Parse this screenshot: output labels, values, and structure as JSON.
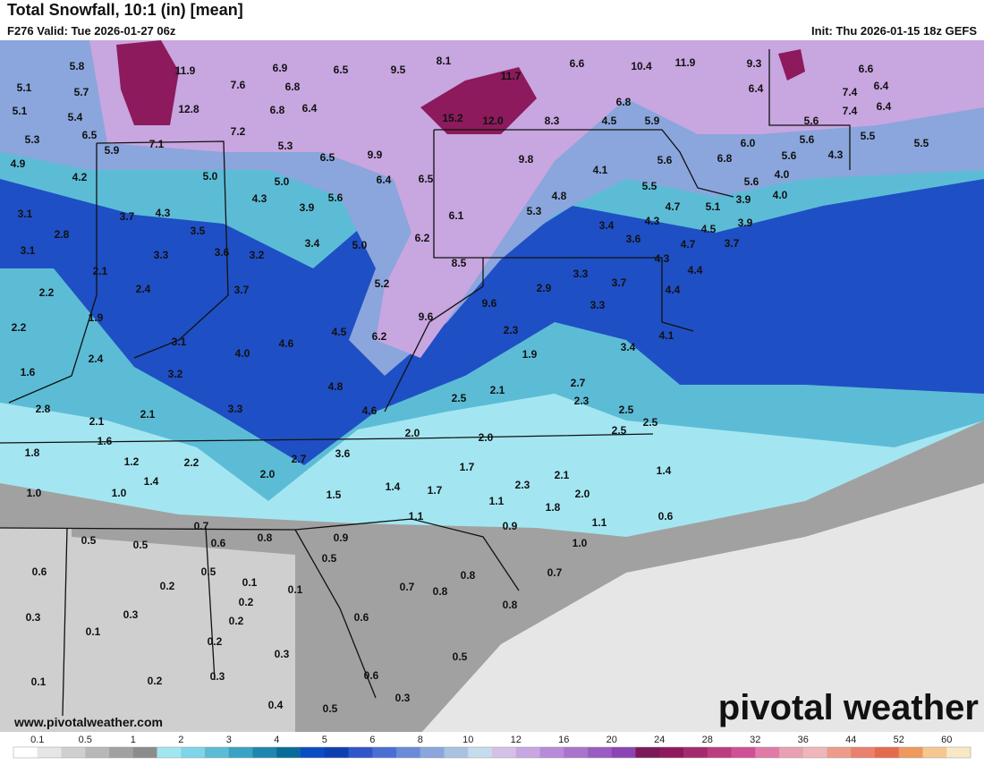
{
  "header": {
    "title": "Total Snowfall, 10:1 (in) [mean]",
    "valid": "F276 Valid: Tue 2026-01-27 06z",
    "init": "Init: Thu 2026-01-15 18z GEFS"
  },
  "map": {
    "labels": [
      "5.8",
      "11.9",
      "6.9",
      "6.5",
      "9.5",
      "8.1",
      "6.6",
      "10.4",
      "11.9",
      "9.3",
      "6.6",
      "5.1",
      "5.7",
      "7.6",
      "6.8",
      "11.7",
      "6.4",
      "7.4",
      "6.4",
      "5.1",
      "5.4",
      "12.8",
      "6.8",
      "6.4",
      "6.8",
      "7.4",
      "6.4",
      "5.3",
      "6.5",
      "7.2",
      "15.2",
      "12.0",
      "8.3",
      "4.5",
      "5.9",
      "5.6",
      "5.9",
      "7.1",
      "5.3",
      "6.5",
      "9.9",
      "6.0",
      "5.6",
      "5.5",
      "5.5",
      "4.9",
      "5.6",
      "4.3",
      "6.8",
      "9.8",
      "5.6",
      "4.2",
      "5.0",
      "5.0",
      "6.4",
      "6.5",
      "4.1",
      "5.5",
      "5.6",
      "4.0",
      "4.0",
      "4.3",
      "5.6",
      "4.8",
      "3.9",
      "4.7",
      "5.1",
      "3.9",
      "3.1",
      "3.7",
      "4.3",
      "6.1",
      "5.3",
      "4.3",
      "3.9",
      "2.8",
      "3.5",
      "3.4",
      "4.5",
      "3.6",
      "3.1",
      "3.3",
      "3.6",
      "3.2",
      "3.4",
      "5.0",
      "6.2",
      "4.7",
      "3.7",
      "8.5",
      "4.3",
      "4.4",
      "2.1",
      "3.3",
      "2.9",
      "3.7",
      "2.2",
      "2.4",
      "3.7",
      "5.2",
      "4.4",
      "9.6",
      "3.3",
      "1.9",
      "2.2",
      "4.6",
      "4.5",
      "6.2",
      "9.6",
      "2.3",
      "4.1",
      "3.1",
      "1.9",
      "3.4",
      "1.6",
      "2.4",
      "3.2",
      "4.0",
      "4.8",
      "2.8",
      "2.1",
      "2.5",
      "2.7",
      "2.3",
      "3.3",
      "4.6",
      "2.5",
      "2.1",
      "2.1",
      "2.5",
      "2.5",
      "1.6",
      "2.0",
      "2.0",
      "1.8",
      "1.2",
      "2.2",
      "2.7",
      "3.6",
      "1.7",
      "1.4",
      "2.0",
      "2.1",
      "1.4",
      "1.4",
      "1.7",
      "2.3",
      "1.0",
      "1.0",
      "1.5",
      "2.0",
      "1.1",
      "1.8",
      "1.1",
      "0.6",
      "0.7",
      "0.9",
      "1.1",
      "0.5",
      "0.5",
      "0.6",
      "0.8",
      "0.9",
      "1.0",
      "0.5",
      "0.7",
      "0.6",
      "0.5",
      "0.8",
      "0.2",
      "0.1",
      "0.1",
      "0.7",
      "0.8",
      "0.2",
      "0.3",
      "0.3",
      "0.2",
      "0.6",
      "0.8",
      "0.1",
      "0.2",
      "0.3",
      "0.5",
      "0.3",
      "0.6",
      "0.3",
      "0.1",
      "0.2",
      "0.4",
      "0.5"
    ]
  },
  "colorbar": {
    "labels": [
      "0.1",
      "0.5",
      "1",
      "2",
      "3",
      "4",
      "5",
      "6",
      "8",
      "10",
      "12",
      "16",
      "20",
      "24",
      "28",
      "32",
      "36",
      "44",
      "52",
      "60"
    ],
    "colors": [
      "#ffffff",
      "#e6e6e6",
      "#cfcfcf",
      "#b8b8b8",
      "#a1a1a1",
      "#8c8c8c",
      "#a3e6f2",
      "#7fd4e8",
      "#5cbcd6",
      "#3aa3c4",
      "#1f86b0",
      "#0a6a99",
      "#0a4cc4",
      "#0d3fae",
      "#2f55c8",
      "#4a6ed4",
      "#6a8bd8",
      "#8aa6dc",
      "#a9c2e2",
      "#c6dcec",
      "#d5c1e8",
      "#c8a6e0",
      "#b88bd8",
      "#a874cc",
      "#9a5cc0",
      "#8a44b4",
      "#7a1a58",
      "#8c1a5c",
      "#a32a6e",
      "#bb3d80",
      "#d05096",
      "#e07aa6",
      "#e8a0b4",
      "#eeb6b8",
      "#ec9c8c",
      "#e8826c",
      "#e46a50",
      "#ee9a5e",
      "#f4c890",
      "#f8e8c4"
    ]
  },
  "branding": {
    "url": "www.pivotalweather.com",
    "logo": "pivotal weather"
  }
}
